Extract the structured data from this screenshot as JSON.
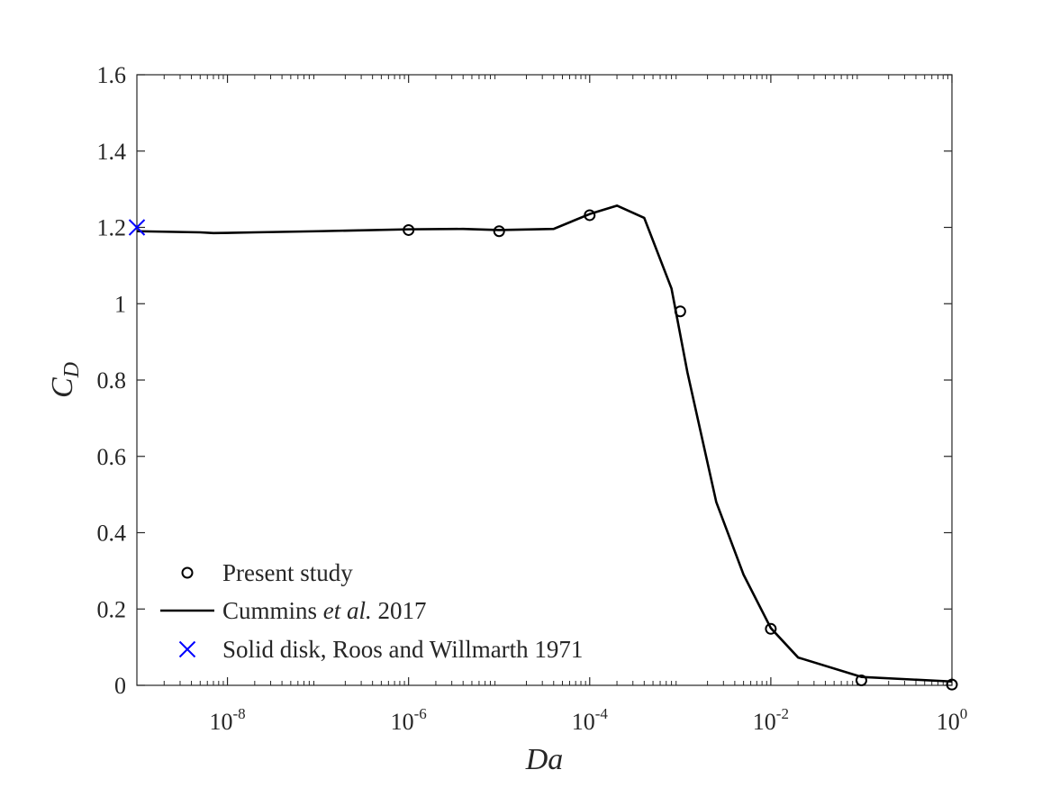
{
  "chart_data": {
    "type": "line",
    "title": "",
    "xlabel": "Da",
    "ylabel": {
      "main": "C",
      "sub": "D"
    },
    "xscale": "log",
    "xlim": [
      1e-09,
      1
    ],
    "ylim": [
      0,
      1.6
    ],
    "grid": false,
    "legend_position": "bottom-left",
    "x_ticks": [
      {
        "value": 1e-08,
        "base": "10",
        "exp": "-8"
      },
      {
        "value": 1e-06,
        "base": "10",
        "exp": "-6"
      },
      {
        "value": 0.0001,
        "base": "10",
        "exp": "-4"
      },
      {
        "value": 0.01,
        "base": "10",
        "exp": "-2"
      },
      {
        "value": 1,
        "base": "10",
        "exp": "0"
      }
    ],
    "y_ticks": [
      {
        "value": 0,
        "label": "0"
      },
      {
        "value": 0.2,
        "label": "0.2"
      },
      {
        "value": 0.4,
        "label": "0.4"
      },
      {
        "value": 0.6,
        "label": "0.6"
      },
      {
        "value": 0.8,
        "label": "0.8"
      },
      {
        "value": 1.0,
        "label": "1"
      },
      {
        "value": 1.2,
        "label": "1.2"
      },
      {
        "value": 1.4,
        "label": "1.4"
      },
      {
        "value": 1.6,
        "label": "1.6"
      }
    ],
    "series": [
      {
        "name": "Present study",
        "kind": "markers",
        "marker": "circle",
        "color": "#000000",
        "x": [
          1e-06,
          1e-05,
          0.0001,
          0.001,
          0.01,
          0.1,
          1
        ],
        "y": [
          1.193,
          1.19,
          1.232,
          0.98,
          0.148,
          0.013,
          0.002
        ]
      },
      {
        "name": "Cummins et al. 2017",
        "kind": "line",
        "color": "#000000",
        "x": [
          1e-09,
          5e-09,
          7e-09,
          2e-08,
          1e-07,
          1e-06,
          4e-06,
          1e-05,
          4e-05,
          0.0001,
          0.0002,
          0.0004,
          0.0008,
          0.0012,
          0.0025,
          0.005,
          0.01,
          0.02,
          0.1,
          1
        ],
        "y": [
          1.19,
          1.187,
          1.185,
          1.187,
          1.19,
          1.195,
          1.196,
          1.193,
          1.196,
          1.235,
          1.257,
          1.225,
          1.04,
          0.82,
          0.48,
          0.29,
          0.15,
          0.073,
          0.022,
          0.01
        ]
      },
      {
        "name": "Solid disk, Roos and Willmarth 1971",
        "kind": "markers",
        "marker": "x",
        "color": "#0000ff",
        "x": [
          1e-09
        ],
        "y": [
          1.2
        ]
      }
    ],
    "legend": {
      "entries": [
        {
          "series": 0,
          "parts": [
            {
              "text": "Present study",
              "italic": false
            }
          ]
        },
        {
          "series": 1,
          "parts": [
            {
              "text": "Cummins ",
              "italic": false
            },
            {
              "text": "et al.",
              "italic": true
            },
            {
              "text": " 2017",
              "italic": false
            }
          ]
        },
        {
          "series": 2,
          "parts": [
            {
              "text": "Solid disk, Roos and Willmarth 1971",
              "italic": false
            }
          ]
        }
      ]
    }
  }
}
